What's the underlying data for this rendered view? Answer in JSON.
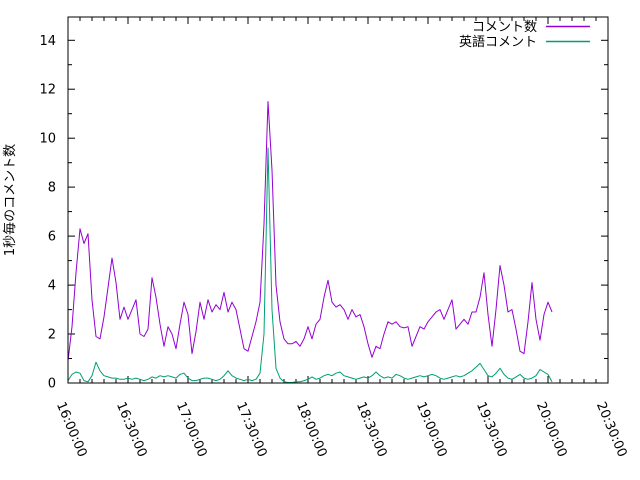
{
  "window": {
    "background": "#ffffff",
    "axis_color": "#000000"
  },
  "chart_data": {
    "type": "line",
    "title": "",
    "xlabel": "",
    "ylabel": "1秒毎のコメント数",
    "grid": false,
    "legend_position": "top-right-inside",
    "x_start": "16:00:00",
    "x_step_minutes": 2,
    "x_axis": {
      "tick_labels": [
        "16:00:00",
        "16:30:00",
        "17:00:00",
        "17:30:00",
        "18:00:00",
        "18:30:00",
        "19:00:00",
        "19:30:00",
        "20:00:00",
        "20:30:00"
      ],
      "major_interval_minutes": 30,
      "minor_interval_minutes": 6,
      "range_minutes": [
        0,
        270
      ],
      "label_rotation_deg": 67
    },
    "y_axis": {
      "tick_labels": [
        "0",
        "2",
        "4",
        "6",
        "8",
        "10",
        "12",
        "14"
      ],
      "major_interval": 2,
      "minor_interval": 1,
      "range": [
        0,
        14.95
      ]
    },
    "series": [
      {
        "name": "コメント数",
        "color": "#9400D3",
        "values": [
          0.9,
          2.3,
          4.5,
          6.3,
          5.7,
          6.1,
          3.4,
          1.9,
          1.8,
          2.7,
          3.9,
          5.1,
          4.1,
          2.6,
          3.1,
          2.6,
          3.0,
          3.4,
          2.0,
          1.9,
          2.2,
          4.3,
          3.5,
          2.4,
          1.5,
          2.3,
          2.0,
          1.4,
          2.4,
          3.3,
          2.8,
          1.2,
          2.1,
          3.3,
          2.6,
          3.4,
          2.9,
          3.2,
          3.0,
          3.7,
          2.9,
          3.3,
          3.0,
          2.2,
          1.4,
          1.3,
          1.9,
          2.5,
          3.3,
          6.5,
          11.5,
          8.7,
          4.0,
          2.5,
          1.8,
          1.6,
          1.6,
          1.7,
          1.5,
          1.8,
          2.3,
          1.8,
          2.4,
          2.6,
          3.5,
          4.2,
          3.3,
          3.1,
          3.2,
          3.0,
          2.6,
          3.0,
          2.7,
          2.8,
          2.3,
          1.6,
          1.05,
          1.5,
          1.4,
          2.0,
          2.5,
          2.4,
          2.5,
          2.3,
          2.25,
          2.3,
          1.5,
          1.9,
          2.3,
          2.2,
          2.5,
          2.7,
          2.9,
          3.0,
          2.6,
          3.0,
          3.4,
          2.2,
          2.4,
          2.6,
          2.4,
          2.9,
          2.9,
          3.5,
          4.5,
          2.8,
          1.5,
          3.0,
          4.8,
          4.0,
          2.9,
          3.0,
          2.2,
          1.3,
          1.2,
          2.5,
          4.1,
          2.6,
          1.75,
          2.8,
          3.3,
          2.9
        ]
      },
      {
        "name": "英語コメント",
        "color": "#009E73",
        "values": [
          0.1,
          0.35,
          0.45,
          0.4,
          0.1,
          0.05,
          0.3,
          0.85,
          0.5,
          0.3,
          0.25,
          0.2,
          0.2,
          0.15,
          0.15,
          0.2,
          0.15,
          0.2,
          0.15,
          0.1,
          0.15,
          0.25,
          0.2,
          0.3,
          0.25,
          0.3,
          0.25,
          0.2,
          0.35,
          0.4,
          0.2,
          0.1,
          0.1,
          0.15,
          0.2,
          0.2,
          0.15,
          0.1,
          0.15,
          0.3,
          0.5,
          0.3,
          0.2,
          0.15,
          0.1,
          0.15,
          0.1,
          0.15,
          0.4,
          2.0,
          9.6,
          3.0,
          0.6,
          0.2,
          0.05,
          0.02,
          0.02,
          0.05,
          0.05,
          0.1,
          0.15,
          0.25,
          0.15,
          0.2,
          0.3,
          0.35,
          0.3,
          0.4,
          0.45,
          0.3,
          0.25,
          0.2,
          0.15,
          0.2,
          0.25,
          0.2,
          0.3,
          0.45,
          0.3,
          0.2,
          0.25,
          0.2,
          0.35,
          0.3,
          0.2,
          0.15,
          0.2,
          0.25,
          0.3,
          0.25,
          0.3,
          0.35,
          0.3,
          0.2,
          0.15,
          0.2,
          0.25,
          0.3,
          0.25,
          0.3,
          0.4,
          0.5,
          0.65,
          0.8,
          0.55,
          0.3,
          0.25,
          0.4,
          0.6,
          0.35,
          0.2,
          0.15,
          0.25,
          0.35,
          0.2,
          0.15,
          0.2,
          0.3,
          0.55,
          0.45,
          0.35,
          0.05
        ]
      }
    ]
  }
}
